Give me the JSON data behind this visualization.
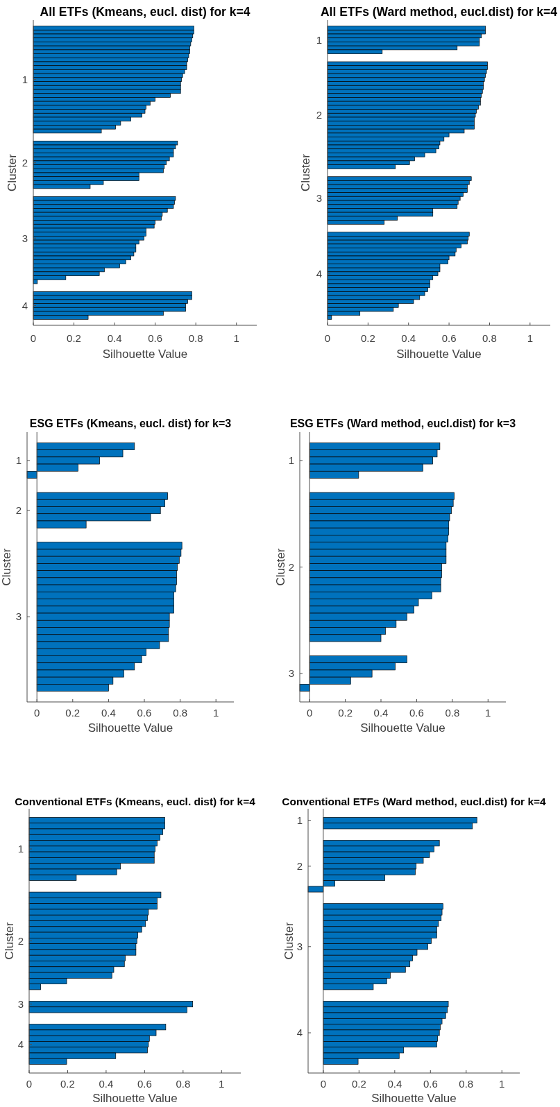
{
  "chart_data": [
    {
      "type": "bar",
      "orientation": "horizontal",
      "title": "All ETFs (Kmeans, eucl. dist) for k=4",
      "xlabel": "Silhouette Value",
      "ylabel": "Cluster",
      "color": "#0072bd",
      "xlim": [
        0,
        1.1
      ],
      "xticks": [
        0,
        0.2,
        0.4,
        0.6,
        0.8,
        1
      ],
      "categories": [
        null,
        null,
        null,
        null,
        null,
        null,
        null,
        null,
        null,
        null,
        null,
        null,
        null,
        "1",
        null,
        null,
        null,
        null,
        null,
        null,
        null,
        null,
        null,
        null,
        null,
        null,
        null,
        null,
        null,
        null,
        null,
        null,
        null,
        null,
        "2",
        null,
        null,
        null,
        null,
        null,
        null,
        null,
        null,
        null,
        null,
        null,
        null,
        null,
        null,
        null,
        null,
        null,
        null,
        "3",
        null,
        null,
        null,
        null,
        null,
        null,
        null,
        null,
        null,
        null,
        null,
        null,
        null,
        null,
        null,
        null,
        "4",
        null,
        null,
        null
      ],
      "values": [
        0.79,
        0.79,
        0.785,
        0.78,
        0.775,
        0.77,
        0.77,
        0.765,
        0.76,
        0.755,
        0.755,
        0.745,
        0.735,
        0.73,
        0.725,
        0.725,
        0.725,
        0.675,
        0.6,
        0.575,
        0.555,
        0.55,
        0.535,
        0.48,
        0.43,
        0.405,
        0.335,
        null,
        null,
        0.71,
        0.7,
        0.69,
        0.69,
        0.67,
        0.655,
        0.645,
        0.64,
        0.52,
        0.52,
        0.345,
        0.28,
        null,
        null,
        0.7,
        0.695,
        0.69,
        0.66,
        0.635,
        0.63,
        0.6,
        0.595,
        0.555,
        0.555,
        0.545,
        0.52,
        0.505,
        0.505,
        0.495,
        0.48,
        0.455,
        0.425,
        0.35,
        0.325,
        0.16,
        0.02,
        null,
        null,
        0.78,
        0.78,
        0.76,
        0.75,
        0.75,
        0.64,
        0.27
      ]
    },
    {
      "type": "bar",
      "orientation": "horizontal",
      "title": "All ETFs (Ward method, eucl.dist) for k=4",
      "xlabel": "Silhouette Value",
      "ylabel": "Cluster",
      "color": "#0072bd",
      "xlim": [
        0,
        1.1
      ],
      "xticks": [
        0,
        0.2,
        0.4,
        0.6,
        0.8,
        1
      ],
      "categories": [
        null,
        null,
        null,
        "1",
        null,
        null,
        null,
        null,
        null,
        null,
        null,
        null,
        null,
        null,
        null,
        null,
        null,
        null,
        null,
        null,
        null,
        null,
        "2",
        null,
        null,
        null,
        null,
        null,
        null,
        null,
        null,
        null,
        null,
        null,
        null,
        null,
        null,
        null,
        null,
        null,
        null,
        null,
        null,
        "3",
        null,
        null,
        null,
        null,
        null,
        null,
        null,
        null,
        null,
        null,
        null,
        null,
        null,
        null,
        null,
        null,
        null,
        null,
        "4",
        null,
        null,
        null,
        null,
        null,
        null,
        null,
        null,
        null,
        null,
        null
      ],
      "values": [
        0.78,
        0.78,
        0.76,
        0.75,
        0.75,
        0.64,
        0.27,
        null,
        null,
        0.79,
        0.79,
        0.785,
        0.78,
        0.775,
        0.77,
        0.77,
        0.765,
        0.76,
        0.755,
        0.755,
        0.745,
        0.735,
        0.73,
        0.725,
        0.725,
        0.725,
        0.675,
        0.6,
        0.575,
        0.555,
        0.55,
        0.535,
        0.48,
        0.43,
        0.405,
        0.335,
        null,
        null,
        0.71,
        0.7,
        0.69,
        0.69,
        0.67,
        0.655,
        0.645,
        0.64,
        0.52,
        0.52,
        0.345,
        0.28,
        null,
        null,
        0.7,
        0.695,
        0.69,
        0.66,
        0.635,
        0.63,
        0.6,
        0.595,
        0.555,
        0.555,
        0.545,
        0.52,
        0.505,
        0.505,
        0.495,
        0.48,
        0.455,
        0.425,
        0.35,
        0.325,
        0.16,
        0.02
      ]
    },
    {
      "type": "bar",
      "orientation": "horizontal",
      "title": "ESG ETFs (Kmeans, eucl. dist) for k=3",
      "xlabel": "Silhouette Value",
      "ylabel": "Cluster",
      "color": "#0072bd",
      "xlim": [
        -0.055,
        1.1
      ],
      "xticks": [
        0,
        0.2,
        0.4,
        0.6,
        0.8,
        1
      ],
      "categories": [
        null,
        null,
        "1",
        null,
        null,
        null,
        null,
        null,
        null,
        "2",
        null,
        null,
        null,
        null,
        null,
        null,
        null,
        null,
        null,
        null,
        null,
        null,
        null,
        null,
        "3",
        null,
        null,
        null,
        null,
        null,
        null,
        null,
        null,
        null,
        null
      ],
      "values": [
        0.545,
        0.48,
        0.35,
        0.23,
        -0.055,
        null,
        null,
        0.73,
        0.715,
        0.69,
        0.635,
        0.275,
        null,
        null,
        0.81,
        0.805,
        0.795,
        0.785,
        0.78,
        0.78,
        0.775,
        0.765,
        0.765,
        0.765,
        0.74,
        0.74,
        0.735,
        0.735,
        0.685,
        0.61,
        0.585,
        0.545,
        0.485,
        0.425,
        0.4
      ]
    },
    {
      "type": "bar",
      "orientation": "horizontal",
      "title": "ESG ETFs (Ward method, eucl.dist) for k=3",
      "xlabel": "Silhouette Value",
      "ylabel": "Cluster",
      "color": "#0072bd",
      "xlim": [
        -0.055,
        1.1
      ],
      "xticks": [
        0,
        0.2,
        0.4,
        0.6,
        0.8,
        1
      ],
      "categories": [
        null,
        null,
        "1",
        null,
        null,
        null,
        null,
        null,
        null,
        null,
        null,
        null,
        null,
        null,
        null,
        null,
        null,
        "2",
        null,
        null,
        null,
        null,
        null,
        null,
        null,
        null,
        null,
        null,
        null,
        null,
        null,
        null,
        "3",
        null,
        null
      ],
      "values": [
        0.73,
        0.715,
        0.69,
        0.635,
        0.275,
        null,
        null,
        0.81,
        0.805,
        0.795,
        0.785,
        0.78,
        0.78,
        0.775,
        0.765,
        0.765,
        0.765,
        0.74,
        0.74,
        0.735,
        0.735,
        0.685,
        0.61,
        0.585,
        0.545,
        0.485,
        0.425,
        0.4,
        null,
        null,
        0.545,
        0.48,
        0.35,
        0.23,
        -0.055
      ]
    },
    {
      "type": "bar",
      "orientation": "horizontal",
      "title": "Conventional ETFs (Kmeans, eucl. dist) for k=4",
      "xlabel": "Silhouette Value",
      "ylabel": "Cluster",
      "color": "#0072bd",
      "xlim": [
        0,
        1.1
      ],
      "xticks": [
        0,
        0.2,
        0.4,
        0.6,
        0.8,
        1
      ],
      "categories": [
        null,
        null,
        null,
        null,
        null,
        "1",
        null,
        null,
        null,
        null,
        null,
        null,
        null,
        null,
        null,
        null,
        null,
        null,
        null,
        null,
        null,
        "2",
        null,
        null,
        null,
        null,
        null,
        null,
        null,
        null,
        null,
        null,
        "3",
        null,
        null,
        null,
        null,
        null,
        null,
        "4",
        null,
        null,
        null
      ],
      "values": [
        0.705,
        0.705,
        0.695,
        0.68,
        0.665,
        0.655,
        0.65,
        0.65,
        0.475,
        0.455,
        0.245,
        null,
        null,
        0.685,
        0.665,
        0.665,
        0.62,
        0.615,
        0.605,
        0.585,
        0.565,
        0.56,
        0.555,
        0.555,
        0.5,
        0.495,
        0.44,
        0.43,
        0.195,
        0.06,
        null,
        null,
        0.85,
        0.82,
        null,
        null,
        0.71,
        0.66,
        0.625,
        0.62,
        0.615,
        0.45,
        0.195
      ]
    },
    {
      "type": "bar",
      "orientation": "horizontal",
      "title": "Conventional ETFs (Ward method, eucl.dist) for k=4",
      "xlabel": "Silhouette Value",
      "ylabel": "Cluster",
      "color": "#0072bd",
      "xlim": [
        -0.085,
        1.1
      ],
      "xticks": [
        0,
        0.2,
        0.4,
        0.6,
        0.8,
        1
      ],
      "categories": [
        "1",
        null,
        null,
        null,
        null,
        null,
        null,
        null,
        "2",
        null,
        null,
        null,
        null,
        null,
        null,
        null,
        null,
        null,
        null,
        null,
        null,
        null,
        "3",
        null,
        null,
        null,
        null,
        null,
        null,
        null,
        null,
        null,
        null,
        null,
        null,
        null,
        null,
        "4",
        null,
        null,
        null,
        null,
        null
      ],
      "values": [
        0.86,
        0.835,
        null,
        null,
        0.65,
        0.62,
        0.595,
        0.56,
        0.52,
        0.515,
        0.345,
        0.065,
        -0.085,
        null,
        null,
        0.67,
        0.665,
        0.66,
        0.645,
        0.635,
        0.635,
        0.605,
        0.585,
        0.525,
        0.5,
        0.485,
        0.46,
        0.375,
        0.355,
        0.28,
        null,
        null,
        0.7,
        0.695,
        0.685,
        0.665,
        0.655,
        0.65,
        0.64,
        0.635,
        0.45,
        0.425,
        0.195
      ]
    }
  ]
}
